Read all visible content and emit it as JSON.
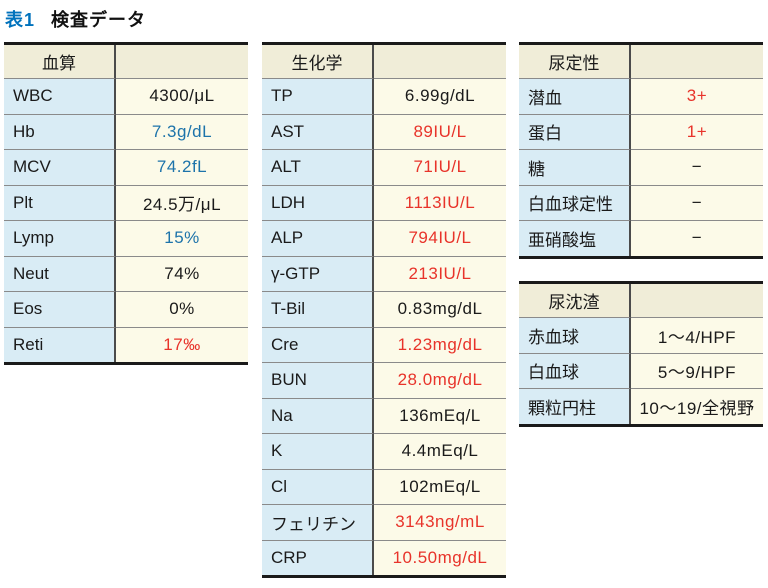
{
  "caption": {
    "number": "表1",
    "title": "検査データ"
  },
  "colors": {
    "caption_number_blue": "#0072bc",
    "red": "#e8332a",
    "blue": "#1d73aa",
    "black": "#1a1a1a",
    "header_bg": "#f0edd8",
    "label_bg": "#d9ecf5",
    "value_bg": "#fcfae8",
    "thick_rule": "#1a1a1a",
    "thin_rule": "#8a8a8a"
  },
  "tables": [
    {
      "header": "血算",
      "rows": [
        {
          "label": "WBC",
          "value": "4300/μL",
          "color": "black"
        },
        {
          "label": "Hb",
          "value": "7.3g/dL",
          "color": "blue"
        },
        {
          "label": "MCV",
          "value": "74.2fL",
          "color": "blue"
        },
        {
          "label": "Plt",
          "value": "24.5万/μL",
          "color": "black"
        },
        {
          "label": "Lymp",
          "value": "15%",
          "color": "blue"
        },
        {
          "label": "Neut",
          "value": "74%",
          "color": "black"
        },
        {
          "label": "Eos",
          "value": "0%",
          "color": "black"
        },
        {
          "label": "Reti",
          "value": "17‰",
          "color": "red"
        }
      ]
    },
    {
      "header": "生化学",
      "rows": [
        {
          "label": "TP",
          "value": "6.99g/dL",
          "color": "black"
        },
        {
          "label": "AST",
          "value": "89IU/L",
          "color": "red"
        },
        {
          "label": "ALT",
          "value": "71IU/L",
          "color": "red"
        },
        {
          "label": "LDH",
          "value": "1113IU/L",
          "color": "red"
        },
        {
          "label": "ALP",
          "value": "794IU/L",
          "color": "red"
        },
        {
          "label": "γ-GTP",
          "value": "213IU/L",
          "color": "red"
        },
        {
          "label": "T-Bil",
          "value": "0.83mg/dL",
          "color": "black"
        },
        {
          "label": "Cre",
          "value": "1.23mg/dL",
          "color": "red"
        },
        {
          "label": "BUN",
          "value": "28.0mg/dL",
          "color": "red"
        },
        {
          "label": "Na",
          "value": "136mEq/L",
          "color": "black"
        },
        {
          "label": "K",
          "value": "4.4mEq/L",
          "color": "black"
        },
        {
          "label": "Cl",
          "value": "102mEq/L",
          "color": "black"
        },
        {
          "label": "フェリチン",
          "value": "3143ng/mL",
          "color": "red"
        },
        {
          "label": "CRP",
          "value": "10.50mg/dL",
          "color": "red"
        }
      ]
    },
    {
      "header": "尿定性",
      "rows": [
        {
          "label": "潜血",
          "value": "3+",
          "color": "red"
        },
        {
          "label": "蛋白",
          "value": "1+",
          "color": "red"
        },
        {
          "label": "糖",
          "value": "−",
          "color": "black"
        },
        {
          "label": "白血球定性",
          "value": "−",
          "color": "black"
        },
        {
          "label": "亜硝酸塩",
          "value": "−",
          "color": "black"
        }
      ]
    },
    {
      "header": "尿沈渣",
      "rows": [
        {
          "label": "赤血球",
          "value": "1〜4/HPF",
          "color": "black"
        },
        {
          "label": "白血球",
          "value": "5〜9/HPF",
          "color": "black"
        },
        {
          "label": "顆粒円柱",
          "value": "10〜19/全視野",
          "color": "black"
        }
      ]
    }
  ]
}
